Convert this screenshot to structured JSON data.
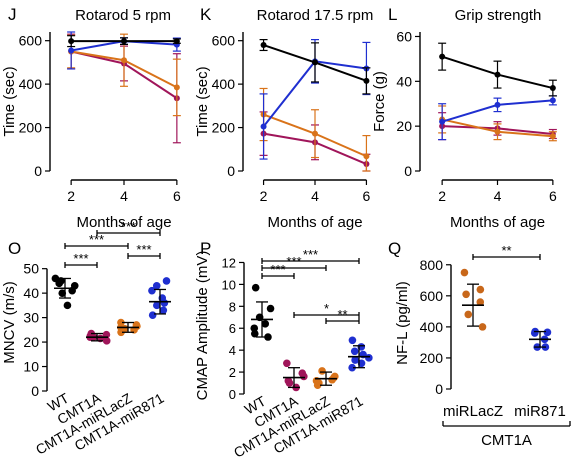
{
  "colors": {
    "WT": "#000000",
    "CMT1A": "#a0155a",
    "CMT1A-miRLacZ": "#d9731a",
    "CMT1A-miR871": "#1f2fd0",
    "miRLacZ": "#c8671a",
    "miR871": "#1f2fd0"
  },
  "chart_data": [
    {
      "panel": "J",
      "type": "line",
      "title": "Rotarod 5 rpm",
      "xlabel": "Months of age",
      "ylabel": "Time (sec)",
      "xlim": [
        1.2,
        6.8
      ],
      "ylim": [
        0,
        640
      ],
      "xticks": [
        2,
        4,
        6
      ],
      "yticks": [
        0,
        200,
        400,
        600
      ],
      "series": [
        {
          "group": "WT",
          "x": [
            2,
            4,
            6
          ],
          "y": [
            598,
            598,
            598
          ],
          "err": [
            25,
            15,
            10
          ]
        },
        {
          "group": "CMT1A-miR871",
          "x": [
            2,
            4,
            6
          ],
          "y": [
            555,
            598,
            582
          ],
          "err": [
            85,
            15,
            30
          ]
        },
        {
          "group": "CMT1A-miRLacZ",
          "x": [
            2,
            4,
            6
          ],
          "y": [
            550,
            510,
            385
          ],
          "err": [
            75,
            120,
            130
          ]
        },
        {
          "group": "CMT1A",
          "x": [
            2,
            4,
            6
          ],
          "y": [
            550,
            495,
            335
          ],
          "err": [
            80,
            80,
            205
          ]
        }
      ]
    },
    {
      "panel": "K",
      "type": "line",
      "title": "Rotarod 17.5 rpm",
      "xlabel": "Months of age",
      "ylabel": "Time (sec)",
      "xlim": [
        1.2,
        6.8
      ],
      "ylim": [
        0,
        640
      ],
      "xticks": [
        2,
        4,
        6
      ],
      "yticks": [
        0,
        200,
        400,
        600
      ],
      "series": [
        {
          "group": "WT",
          "x": [
            2,
            4,
            6
          ],
          "y": [
            580,
            500,
            415
          ],
          "err": [
            25,
            90,
            60
          ]
        },
        {
          "group": "CMT1A-miR871",
          "x": [
            2,
            4,
            6
          ],
          "y": [
            205,
            505,
            472
          ],
          "err": [
            150,
            100,
            120
          ]
        },
        {
          "group": "CMT1A-miRLacZ",
          "x": [
            2,
            4,
            6
          ],
          "y": [
            260,
            172,
            68
          ],
          "err": [
            120,
            110,
            95
          ]
        },
        {
          "group": "CMT1A",
          "x": [
            2,
            4,
            6
          ],
          "y": [
            172,
            132,
            32
          ],
          "err": [
            100,
            80,
            45
          ]
        }
      ]
    },
    {
      "panel": "L",
      "type": "line",
      "title": "Grip strength",
      "xlabel": "Months of age",
      "ylabel": "Force (g)",
      "xlim": [
        1.2,
        6.8
      ],
      "ylim": [
        0,
        62
      ],
      "xticks": [
        2,
        4,
        6
      ],
      "yticks": [
        0,
        20,
        40,
        60
      ],
      "series": [
        {
          "group": "WT",
          "x": [
            2,
            4,
            6
          ],
          "y": [
            51,
            43,
            37
          ],
          "err": [
            6,
            6,
            3.5
          ]
        },
        {
          "group": "CMT1A-miR871",
          "x": [
            2,
            4,
            6
          ],
          "y": [
            22,
            29.5,
            31.5
          ],
          "err": [
            8,
            3,
            2
          ]
        },
        {
          "group": "CMT1A-miRLacZ",
          "x": [
            2,
            4,
            6
          ],
          "y": [
            23,
            17.5,
            15.5
          ],
          "err": [
            6,
            3.5,
            2
          ]
        },
        {
          "group": "CMT1A",
          "x": [
            2,
            4,
            6
          ],
          "y": [
            20,
            19,
            16.5
          ],
          "err": [
            6,
            3,
            2
          ]
        }
      ]
    },
    {
      "panel": "O",
      "type": "scatter",
      "ylabel": "MNCV (m/s)",
      "ylim": [
        0,
        56
      ],
      "yticks": [
        0,
        10,
        20,
        30,
        40,
        50
      ],
      "categories": [
        "WT",
        "CMT1A",
        "CMT1A-miRLacZ",
        "CMT1A-miR871"
      ],
      "groups": [
        {
          "group": "WT",
          "mean": 42,
          "err": 4,
          "points": [
            45,
            43,
            44,
            41,
            40,
            35,
            46
          ]
        },
        {
          "group": "CMT1A",
          "mean": 22,
          "err": 1.5,
          "points": [
            22,
            21.5,
            22.5,
            23,
            22,
            20.5,
            23.5
          ]
        },
        {
          "group": "CMT1A-miRLacZ",
          "mean": 26,
          "err": 2,
          "points": [
            24,
            25,
            26,
            27,
            28,
            26.5,
            25.5
          ]
        },
        {
          "group": "CMT1A-miR871",
          "mean": 36.5,
          "err": 5,
          "points": [
            41,
            45,
            43,
            36,
            35,
            33,
            31,
            38
          ]
        }
      ],
      "significance": [
        {
          "from": 0,
          "to": 1,
          "label": "***"
        },
        {
          "from": 0,
          "to": 2,
          "label": "***"
        },
        {
          "from": 2,
          "to": 3,
          "label": "***"
        },
        {
          "from": 1,
          "to": 3,
          "label": "***"
        }
      ]
    },
    {
      "panel": "P",
      "type": "scatter",
      "ylabel": "CMAP Amplitude (mV)",
      "ylim": [
        0,
        12.5
      ],
      "yticks": [
        0,
        2,
        4,
        6,
        8,
        10,
        12
      ],
      "categories": [
        "WT",
        "CMT1A",
        "CMT1A-miRLacZ",
        "CMT1A-miR871"
      ],
      "groups": [
        {
          "group": "WT",
          "mean": 6.8,
          "err": 1.6,
          "points": [
            9.7,
            7.8,
            7,
            6.4,
            6,
            5.2,
            5.5
          ]
        },
        {
          "group": "CMT1A",
          "mean": 1.5,
          "err": 0.9,
          "points": [
            2.8,
            1.9,
            1.2,
            0.6,
            1,
            1.6
          ]
        },
        {
          "group": "CMT1A-miRLacZ",
          "mean": 1.4,
          "err": 0.6,
          "points": [
            2.1,
            1.3,
            1.0,
            1.5,
            0.8,
            1.6,
            1.2
          ]
        },
        {
          "group": "CMT1A-miR871",
          "mean": 3.4,
          "err": 1.0,
          "points": [
            4.9,
            4.3,
            3.1,
            3.6,
            2.4,
            2.8,
            3.9,
            3.3
          ]
        }
      ],
      "significance": [
        {
          "from": 0,
          "to": 1,
          "label": "***"
        },
        {
          "from": 0,
          "to": 2,
          "label": "***"
        },
        {
          "from": 0,
          "to": 3,
          "label": "***"
        },
        {
          "from": 1,
          "to": 3,
          "label": "*"
        },
        {
          "from": 2,
          "to": 3,
          "label": "**"
        }
      ]
    },
    {
      "panel": "Q",
      "type": "scatter",
      "ylabel": "NF-L (pg/ml)",
      "ylim": [
        0,
        850
      ],
      "yticks": [
        0,
        200,
        400,
        600,
        800
      ],
      "categories": [
        "miRLacZ",
        "miR871"
      ],
      "group_label": "CMT1A",
      "groups": [
        {
          "group": "miRLacZ",
          "mean": 540,
          "err": 135,
          "points": [
            750,
            640,
            610,
            560,
            480,
            400
          ]
        },
        {
          "group": "miR871",
          "mean": 320,
          "err": 50,
          "points": [
            370,
            365,
            360,
            320,
            270,
            270
          ]
        }
      ],
      "significance": [
        {
          "from": 0,
          "to": 1,
          "label": "**"
        }
      ]
    }
  ]
}
